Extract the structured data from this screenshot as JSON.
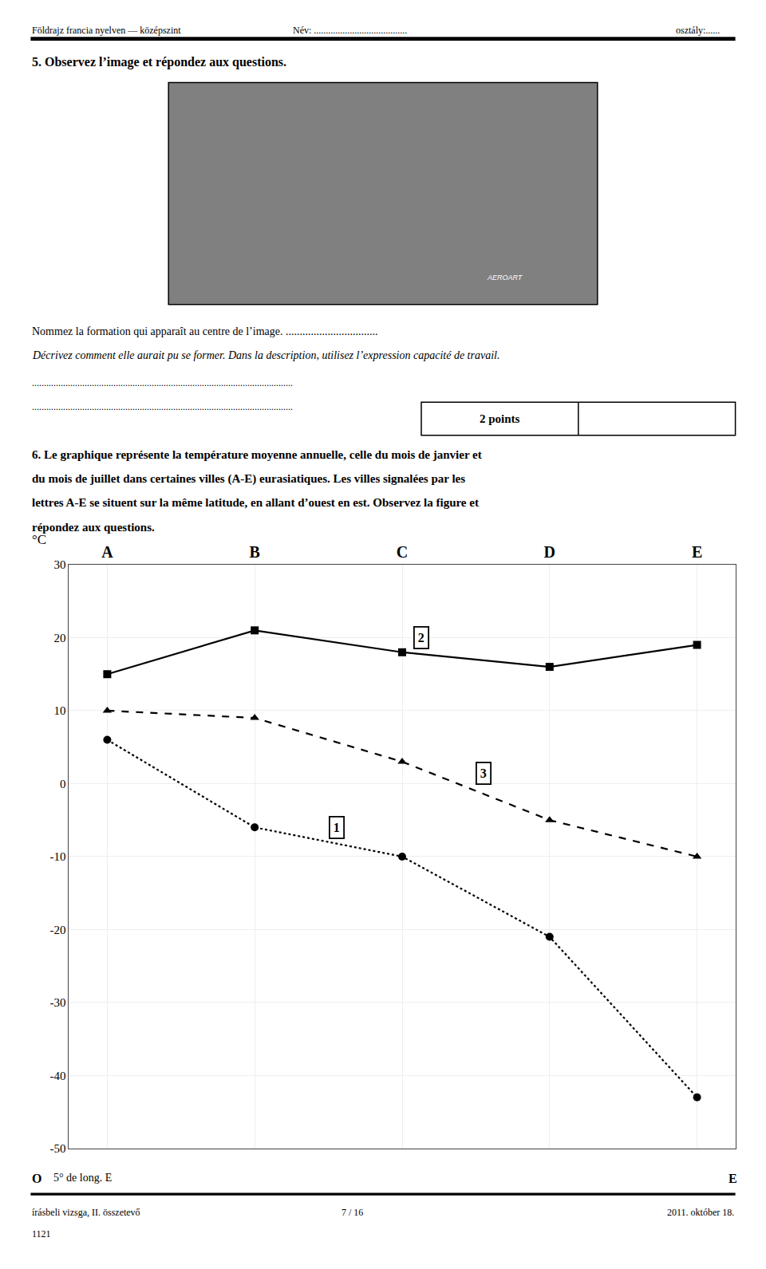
{
  "chart_data": {
    "type": "line",
    "categories": [
      "A",
      "B",
      "C",
      "D",
      "E"
    ],
    "series": [
      {
        "name": "2",
        "color": "#000000",
        "values": [
          15,
          21,
          18,
          16,
          19
        ],
        "marker": "square",
        "line_style": "solid"
      },
      {
        "name": "3",
        "color": "#000000",
        "values": [
          10,
          9,
          3,
          -5,
          -10
        ],
        "marker": "triangle-up",
        "line_style": "dash"
      },
      {
        "name": "1",
        "color": "#000000",
        "values": [
          6,
          -6,
          -10,
          -21,
          -43
        ],
        "marker": "circle",
        "line_style": "dot"
      }
    ],
    "ylim": [
      -50,
      30
    ],
    "yticks": [
      30,
      20,
      10,
      0,
      -10,
      -20,
      -30,
      -40,
      -50
    ],
    "ylabel": "°C",
    "grid": true,
    "annotations": [
      "Földrajz francia nyelven — középszint",
      "Név: .......................................",
      "osztály:......",
      "5. Observez l’image et répondez aux questions.",
      "AEROART",
      "Nommez la formation qui apparaît au centre de l’image. .................................",
      "Décrivez comment elle aurait pu se former. Dans la description, utilisez l’expression capacité de travail.",
      ".............................................................................................................",
      ".............................................................................................................",
      "2 points",
      "6. Le graphique représente la température moyenne annuelle, celle du mois de janvier et",
      "du mois de juillet dans certaines villes (A-E) eurasiatiques. Les villes signalées par les",
      "lettres A-E se situent sur la même latitude, en allant d’ouest en est. Observez la figure et",
      "répondez aux questions.",
      "O",
      "5° de long. E",
      "E",
      "írásbeli vizsga, II. összetevő",
      "7 / 16",
      "2011. október 18.",
      "1121"
    ]
  }
}
